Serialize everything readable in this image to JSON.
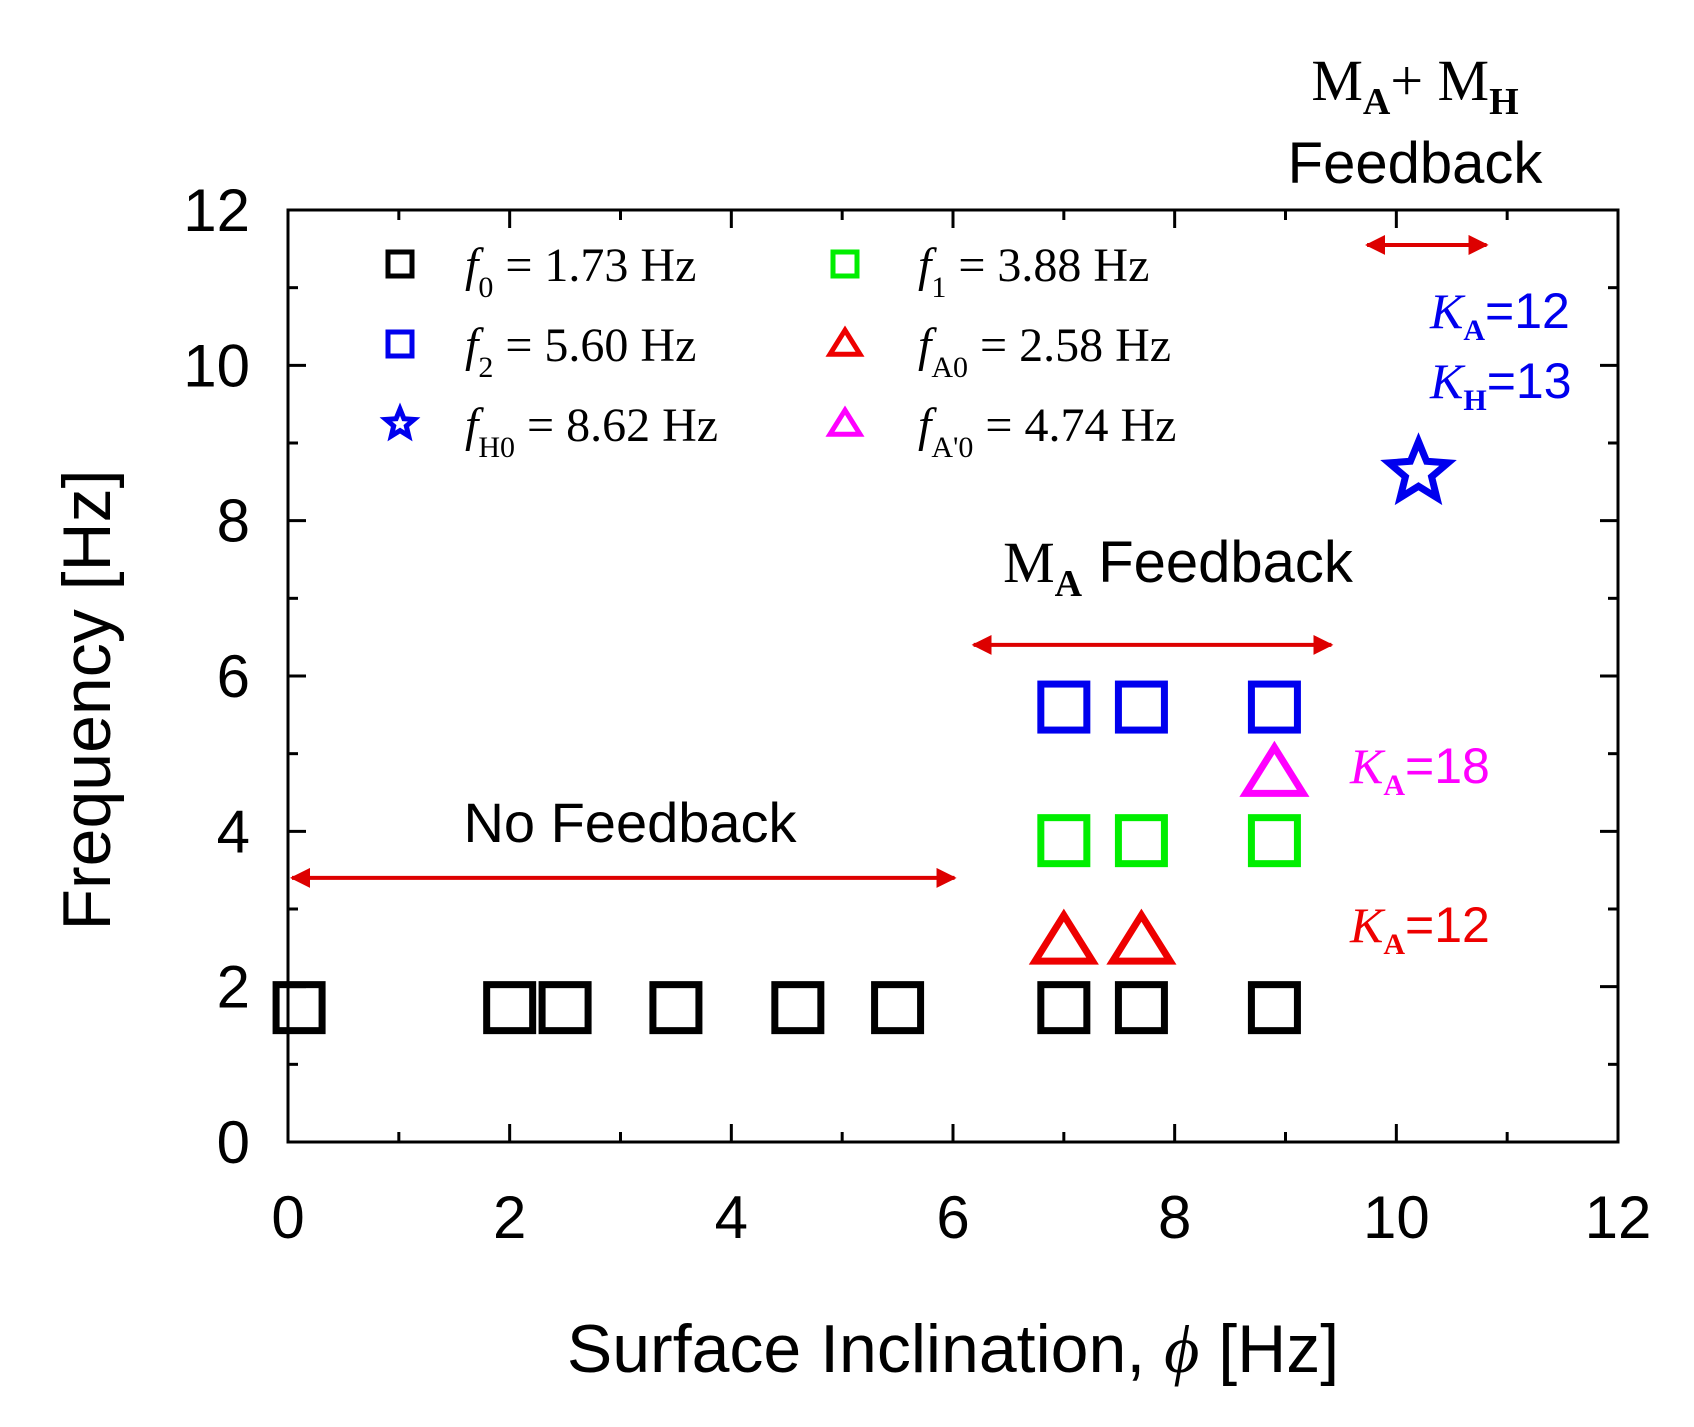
{
  "chart_data": {
    "type": "scatter",
    "xlabel": "Surface Inclination, ",
    "xlabel_symbol": "ϕ",
    "xlabel_unit": " [Hz]",
    "ylabel": "Frequency [Hz]",
    "xlim": [
      0,
      12
    ],
    "ylim": [
      0,
      12
    ],
    "x_ticks": [
      0,
      2,
      4,
      6,
      8,
      10,
      12
    ],
    "y_ticks": [
      0,
      2,
      4,
      6,
      8,
      10,
      12
    ],
    "x_tick_labels": [
      "0",
      "2",
      "4",
      "6",
      "8",
      "10",
      "12"
    ],
    "y_tick_labels": [
      "0",
      "2",
      "4",
      "6",
      "8",
      "10",
      "12"
    ],
    "grid": false,
    "legend_position": "top-left",
    "series": [
      {
        "name": "f0 = 1.73 Hz",
        "sym": "f",
        "sub": "0",
        "val": " = 1.73 Hz",
        "marker": "square",
        "color": "#000000",
        "points": [
          [
            0.1,
            1.73
          ],
          [
            2.0,
            1.73
          ],
          [
            2.5,
            1.73
          ],
          [
            3.5,
            1.73
          ],
          [
            4.6,
            1.73
          ],
          [
            5.5,
            1.73
          ],
          [
            7.0,
            1.73
          ],
          [
            7.7,
            1.73
          ],
          [
            8.9,
            1.73
          ]
        ]
      },
      {
        "name": "f1 = 3.88 Hz",
        "sym": "f",
        "sub": "1",
        "val": " = 3.88 Hz",
        "marker": "square",
        "color": "#00ee00",
        "points": [
          [
            7.0,
            3.88
          ],
          [
            7.7,
            3.88
          ],
          [
            8.9,
            3.88
          ]
        ]
      },
      {
        "name": "f2 = 5.60 Hz",
        "sym": "f",
        "sub": "2",
        "val": " = 5.60 Hz",
        "marker": "square",
        "color": "#0000ee",
        "points": [
          [
            7.0,
            5.6
          ],
          [
            7.7,
            5.6
          ],
          [
            8.9,
            5.6
          ]
        ]
      },
      {
        "name": "fA0 = 2.58 Hz",
        "sym": "f",
        "sub": "A0",
        "val": " = 2.58 Hz",
        "marker": "triangle",
        "color": "#ee0000",
        "points": [
          [
            7.0,
            2.58
          ],
          [
            7.7,
            2.58
          ]
        ]
      },
      {
        "name": "fH0 = 8.62 Hz",
        "sym": "f",
        "sub": "H0",
        "val": " = 8.62 Hz",
        "marker": "star",
        "color": "#0000ee",
        "points": [
          [
            10.2,
            8.62
          ]
        ]
      },
      {
        "name": "fA'0 = 4.74 Hz",
        "sym": "f",
        "sub": "A'0",
        "val": " = 4.74 Hz",
        "marker": "triangle",
        "color": "#ff00ff",
        "points": [
          [
            8.9,
            4.74
          ]
        ]
      }
    ],
    "annotations": {
      "no_feedback": {
        "label": "No Feedback",
        "x_range": [
          0,
          6.05
        ],
        "y": 3.4
      },
      "ma_feedback": {
        "main": "M",
        "sub": "A",
        "rest": " Feedback",
        "x_range": [
          6.15,
          9.45
        ],
        "y": 6.4
      },
      "mamh_feedback": {
        "m1": "M",
        "s1": "A",
        "plus": "+ M",
        "s2": "H",
        "line2": "Feedback",
        "x_range": [
          9.7,
          10.85
        ],
        "y": 11.55
      },
      "ka12_blue": {
        "k": "K",
        "sub": "A",
        "rest": "=12",
        "color": "#0000ee"
      },
      "kh13_blue": {
        "k": "K",
        "sub": "H",
        "rest": "=13",
        "color": "#0000ee"
      },
      "ka18_magenta": {
        "k": "K",
        "sub": "A",
        "rest": "=18",
        "color": "#ff00ff"
      },
      "ka12_red": {
        "k": "K",
        "sub": "A",
        "rest": "=12",
        "color": "#ee0000"
      },
      "arrow_color": "#dd0000"
    }
  }
}
